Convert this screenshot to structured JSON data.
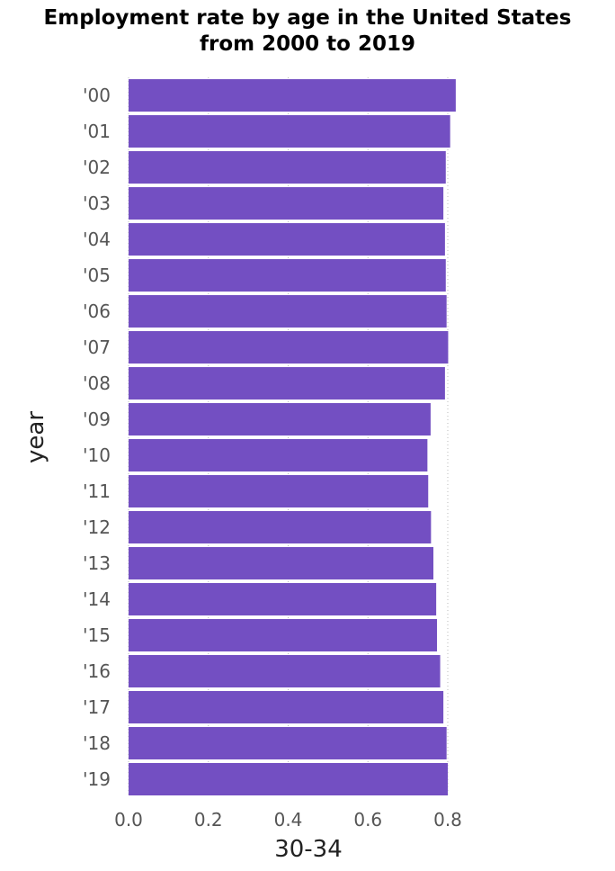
{
  "chart_data": {
    "type": "bar",
    "orientation": "horizontal",
    "title": "Employment rate by age in the United States from 2000 to 2019",
    "title_lines": [
      "Employment rate by age in the United States",
      "from 2000 to 2019"
    ],
    "xlabel": "30-34",
    "ylabel": "year",
    "categories": [
      "'00",
      "'01",
      "'02",
      "'03",
      "'04",
      "'05",
      "'06",
      "'07",
      "'08",
      "'09",
      "'10",
      "'11",
      "'12",
      "'13",
      "'14",
      "'15",
      "'16",
      "'17",
      "'18",
      "'19"
    ],
    "values": [
      0.82,
      0.806,
      0.795,
      0.789,
      0.793,
      0.795,
      0.797,
      0.801,
      0.793,
      0.757,
      0.749,
      0.751,
      0.758,
      0.764,
      0.771,
      0.773,
      0.781,
      0.789,
      0.797,
      0.8
    ],
    "xlim": [
      0,
      0.8
    ],
    "xticks": [
      "0.0",
      "0.2",
      "0.4",
      "0.6",
      "0.8"
    ],
    "xtick_values": [
      0,
      0.2,
      0.4,
      0.6,
      0.8
    ],
    "grid": true,
    "bar_color": "#734fc2"
  }
}
